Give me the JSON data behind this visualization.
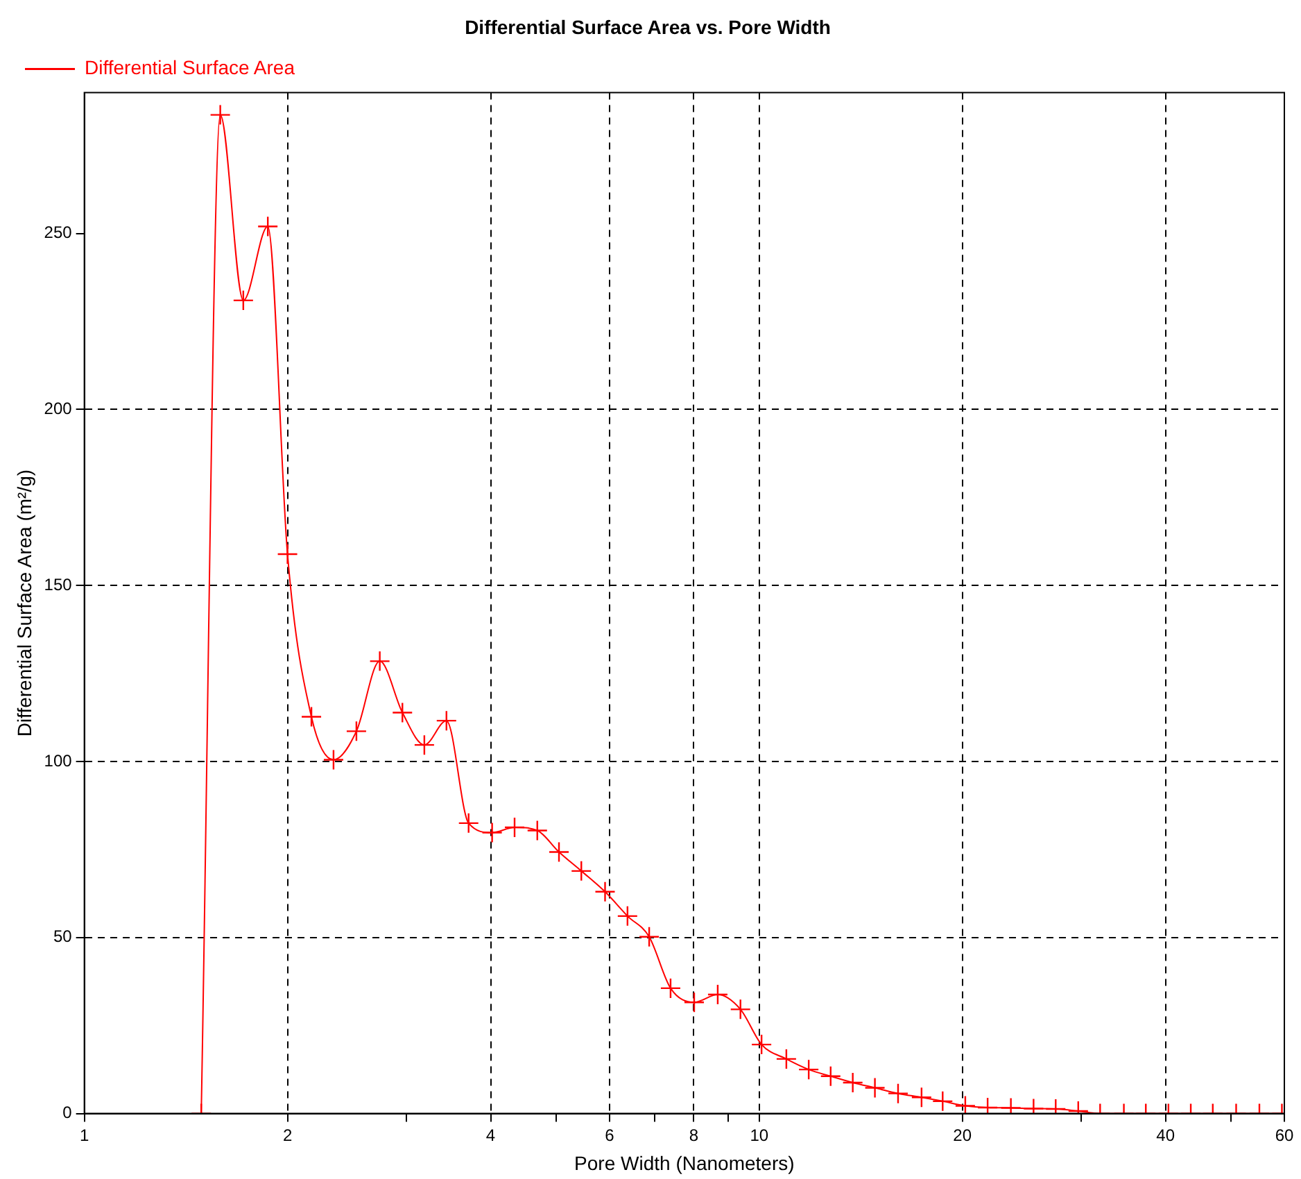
{
  "chart_data": {
    "type": "line",
    "title": "Differential Surface Area vs. Pore Width",
    "xlabel": "Pore Width (Nanometers)",
    "ylabel": "Differential Surface Area (m²/g)",
    "log": "x",
    "xlim": [
      1,
      60
    ],
    "ylim": [
      0,
      290
    ],
    "xticks": [
      1,
      2,
      {
        "value": 3,
        "label": null
      },
      4,
      {
        "value": 5,
        "label": null
      },
      6,
      {
        "value": 7,
        "label": null
      },
      8,
      {
        "value": 9,
        "label": null
      },
      10,
      20,
      {
        "value": 30,
        "label": null
      },
      40,
      {
        "value": 50,
        "label": null
      },
      60
    ],
    "yticks": [
      0,
      50,
      100,
      150,
      200,
      250
    ],
    "grid": true,
    "legend": "top left",
    "marker": "cross",
    "line_style": "solid",
    "series": [
      {
        "name": "Differential Surface Area",
        "color": "#ff0000",
        "x": [
          1.49,
          1.59,
          1.72,
          1.87,
          2.0,
          2.17,
          2.34,
          2.53,
          2.74,
          2.96,
          3.19,
          3.44,
          3.71,
          4.02,
          4.34,
          4.69,
          5.05,
          5.45,
          5.91,
          6.38,
          6.87,
          7.39,
          8.01,
          8.68,
          9.38,
          10.08,
          10.97,
          11.84,
          12.76,
          13.76,
          14.84,
          16.06,
          17.4,
          18.7,
          20.2,
          21.8,
          23.6,
          25.5,
          27.5,
          29.7,
          32.0,
          34.7,
          37.4,
          40.4,
          43.6,
          47.0,
          50.9,
          55.1,
          59.5
        ],
        "values": [
          0,
          283.7,
          231,
          252,
          158.9,
          112.7,
          100.5,
          108.6,
          128.5,
          113.9,
          104.7,
          111.6,
          82.5,
          79.8,
          81.3,
          80.4,
          74.3,
          68.9,
          63.0,
          56.1,
          50.2,
          35.6,
          31.6,
          33.8,
          29.6,
          19.6,
          15.5,
          12.5,
          10.6,
          8.8,
          7.3,
          5.7,
          4.6,
          3.5,
          2.2,
          1.7,
          1.6,
          1.4,
          1.3,
          0.7,
          0,
          0,
          0,
          0,
          0,
          0,
          0,
          0,
          0
        ]
      }
    ]
  }
}
